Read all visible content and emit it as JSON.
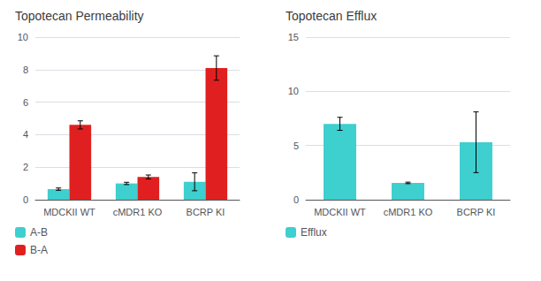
{
  "chart_data": [
    {
      "type": "bar",
      "title": "Topotecan Permeability",
      "categories": [
        "MDCKII WT",
        "cMDR1 KO",
        "BCRP KI"
      ],
      "series": [
        {
          "name": "A-B",
          "color": "#3ECFCF",
          "values": [
            0.65,
            1.0,
            1.1
          ],
          "errors": [
            0.07,
            0.07,
            0.55
          ]
        },
        {
          "name": "B-A",
          "color": "#E02020",
          "values": [
            4.6,
            1.4,
            8.1
          ],
          "errors": [
            0.25,
            0.12,
            0.75
          ]
        }
      ],
      "ylim": [
        0,
        10
      ],
      "yticks": [
        0,
        2,
        4,
        6,
        8,
        10
      ],
      "grid": true,
      "legend": "bottom"
    },
    {
      "type": "bar",
      "title": "Topotecan Efflux",
      "categories": [
        "MDCKII WT",
        "cMDR1 KO",
        "BCRP KI"
      ],
      "series": [
        {
          "name": "Efflux",
          "color": "#3ECFCF",
          "values": [
            7.0,
            1.55,
            5.3
          ],
          "errors": [
            0.6,
            0.07,
            2.8
          ]
        }
      ],
      "ylim": [
        0,
        15
      ],
      "yticks": [
        0,
        5,
        10,
        15
      ],
      "grid": true,
      "legend": "bottom"
    }
  ]
}
